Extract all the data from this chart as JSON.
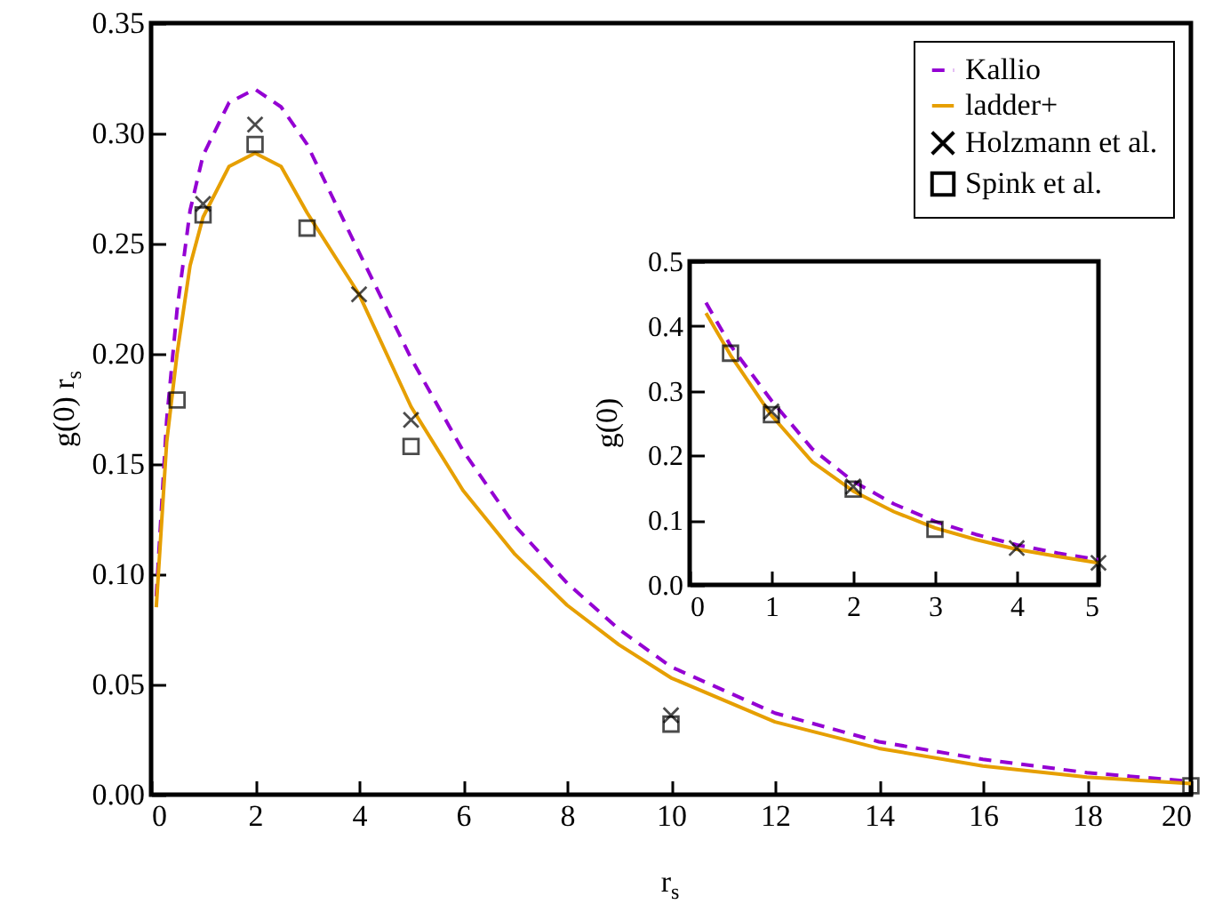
{
  "chart_data": [
    {
      "type": "line",
      "xlabel": "r$_{s}$",
      "ylabel": "g(0) r$_{s}$",
      "xlim": [
        0,
        20
      ],
      "ylim": [
        0,
        0.35
      ],
      "xticks": [
        0,
        2,
        4,
        6,
        8,
        10,
        12,
        14,
        16,
        18,
        20
      ],
      "yticks": [
        {
          "value": 0,
          "label": "0.00"
        },
        0.05,
        {
          "value": 0.1,
          "label": "0.10"
        },
        0.15,
        {
          "value": 0.2,
          "label": "0.20"
        },
        0.25,
        {
          "value": 0.3,
          "label": "0.30"
        },
        0.35
      ],
      "legend": "top right",
      "series": [
        {
          "name": "Kallio",
          "type": "line",
          "line_style": "dashed",
          "color": "#9400d3",
          "x": [
            0.1,
            0.3,
            0.5,
            0.75,
            1,
            1.5,
            2,
            2.5,
            3,
            4,
            5,
            6,
            7,
            8,
            9,
            10,
            12,
            14,
            16,
            18,
            20
          ],
          "values": [
            0.09,
            0.17,
            0.22,
            0.265,
            0.29,
            0.314,
            0.32,
            0.312,
            0.295,
            0.246,
            0.198,
            0.156,
            0.122,
            0.096,
            0.075,
            0.058,
            0.037,
            0.024,
            0.016,
            0.01,
            0.006
          ]
        },
        {
          "name": "ladder+",
          "type": "line",
          "line_style": "solid",
          "color": "#e69f00",
          "x": [
            0.1,
            0.3,
            0.5,
            0.75,
            1,
            1.5,
            2,
            2.5,
            3,
            4,
            5,
            6,
            7,
            8,
            9,
            10,
            12,
            14,
            16,
            18,
            20
          ],
          "values": [
            0.085,
            0.16,
            0.2,
            0.24,
            0.262,
            0.285,
            0.291,
            0.285,
            0.264,
            0.227,
            0.176,
            0.138,
            0.109,
            0.086,
            0.068,
            0.053,
            0.033,
            0.021,
            0.013,
            0.008,
            0.005
          ]
        },
        {
          "name": "Holzmann et al.",
          "type": "scatter",
          "marker": "cross",
          "color": "#000000",
          "x": [
            1,
            2,
            4,
            5,
            10
          ],
          "values": [
            0.268,
            0.304,
            0.227,
            0.17,
            0.036
          ]
        },
        {
          "name": "Spink et al.",
          "type": "scatter",
          "marker": "square",
          "color": "#000000",
          "x": [
            0.5,
            1,
            2,
            3,
            5,
            10,
            20
          ],
          "values": [
            0.179,
            0.263,
            0.295,
            0.257,
            0.158,
            0.032,
            0.004
          ]
        }
      ]
    },
    {
      "type": "line",
      "ylabel": "g(0)",
      "xlim": [
        0,
        5
      ],
      "ylim": [
        0,
        0.5
      ],
      "xticks": [
        0,
        1,
        2,
        3,
        4,
        5
      ],
      "yticks": [
        {
          "value": 0,
          "label": "0.0"
        },
        0.1,
        0.2,
        0.3,
        0.4,
        0.5
      ],
      "series": [
        {
          "type": "line",
          "line_style": "dashed",
          "color": "#9400d3",
          "x": [
            0.2,
            0.5,
            1,
            1.5,
            2,
            2.5,
            3,
            3.5,
            4,
            4.5,
            5
          ],
          "values": [
            0.436,
            0.37,
            0.285,
            0.21,
            0.16,
            0.125,
            0.098,
            0.078,
            0.062,
            0.049,
            0.039
          ]
        },
        {
          "type": "line",
          "line_style": "solid",
          "color": "#e69f00",
          "x": [
            0.2,
            0.5,
            1,
            1.5,
            2,
            2.5,
            3,
            3.5,
            4,
            4.5,
            5
          ],
          "values": [
            0.42,
            0.355,
            0.262,
            0.19,
            0.145,
            0.113,
            0.088,
            0.07,
            0.055,
            0.044,
            0.034
          ]
        },
        {
          "type": "scatter",
          "marker": "cross",
          "color": "#000000",
          "x": [
            1,
            2,
            4,
            5
          ],
          "values": [
            0.268,
            0.152,
            0.057,
            0.034
          ]
        },
        {
          "type": "scatter",
          "marker": "square",
          "color": "#000000",
          "x": [
            0.5,
            1,
            2,
            3
          ],
          "values": [
            0.358,
            0.263,
            0.148,
            0.086
          ]
        }
      ]
    }
  ]
}
